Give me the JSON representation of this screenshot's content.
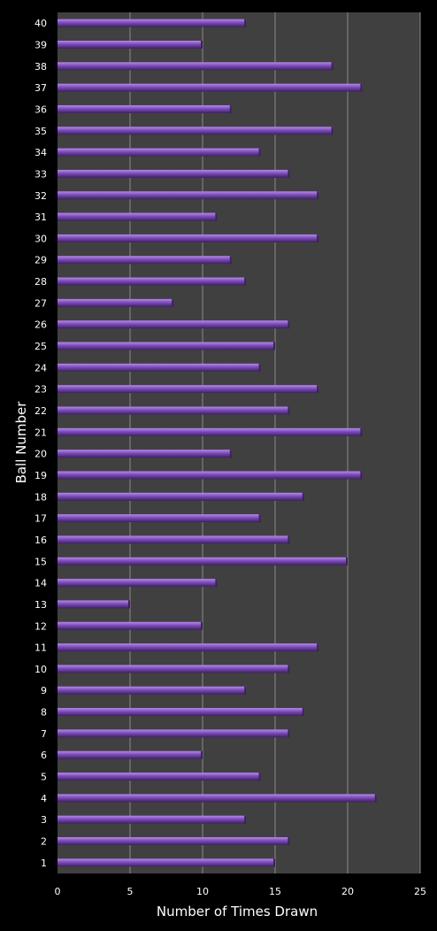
{
  "chart_data": {
    "type": "bar",
    "orientation": "horizontal",
    "xlabel": "Number of Times Drawn",
    "ylabel": "Ball Number",
    "xlim": [
      0,
      25
    ],
    "x_ticks": [
      0,
      5,
      10,
      15,
      20,
      25
    ],
    "grid": "vertical",
    "legend": "none",
    "categories": [
      "1",
      "2",
      "3",
      "4",
      "5",
      "6",
      "7",
      "8",
      "9",
      "10",
      "11",
      "12",
      "13",
      "14",
      "15",
      "16",
      "17",
      "18",
      "19",
      "20",
      "21",
      "22",
      "23",
      "24",
      "25",
      "26",
      "27",
      "28",
      "29",
      "30",
      "31",
      "32",
      "33",
      "34",
      "35",
      "36",
      "37",
      "38",
      "39",
      "40"
    ],
    "values": [
      15,
      16,
      13,
      22,
      14,
      10,
      16,
      17,
      13,
      16,
      18,
      10,
      5,
      11,
      20,
      16,
      14,
      17,
      21,
      12,
      21,
      16,
      18,
      14,
      15,
      16,
      8,
      13,
      12,
      18,
      11,
      18,
      16,
      14,
      19,
      12,
      21,
      19,
      10,
      13
    ],
    "colors": {
      "background": "#000000",
      "plot_area": "#404040",
      "gridline": "#8a8a8a",
      "bar": "#7b4bb8",
      "bar_highlight": "#b48ae6",
      "bar_shadow": "#3e1f63",
      "text": "#ffffff"
    }
  }
}
